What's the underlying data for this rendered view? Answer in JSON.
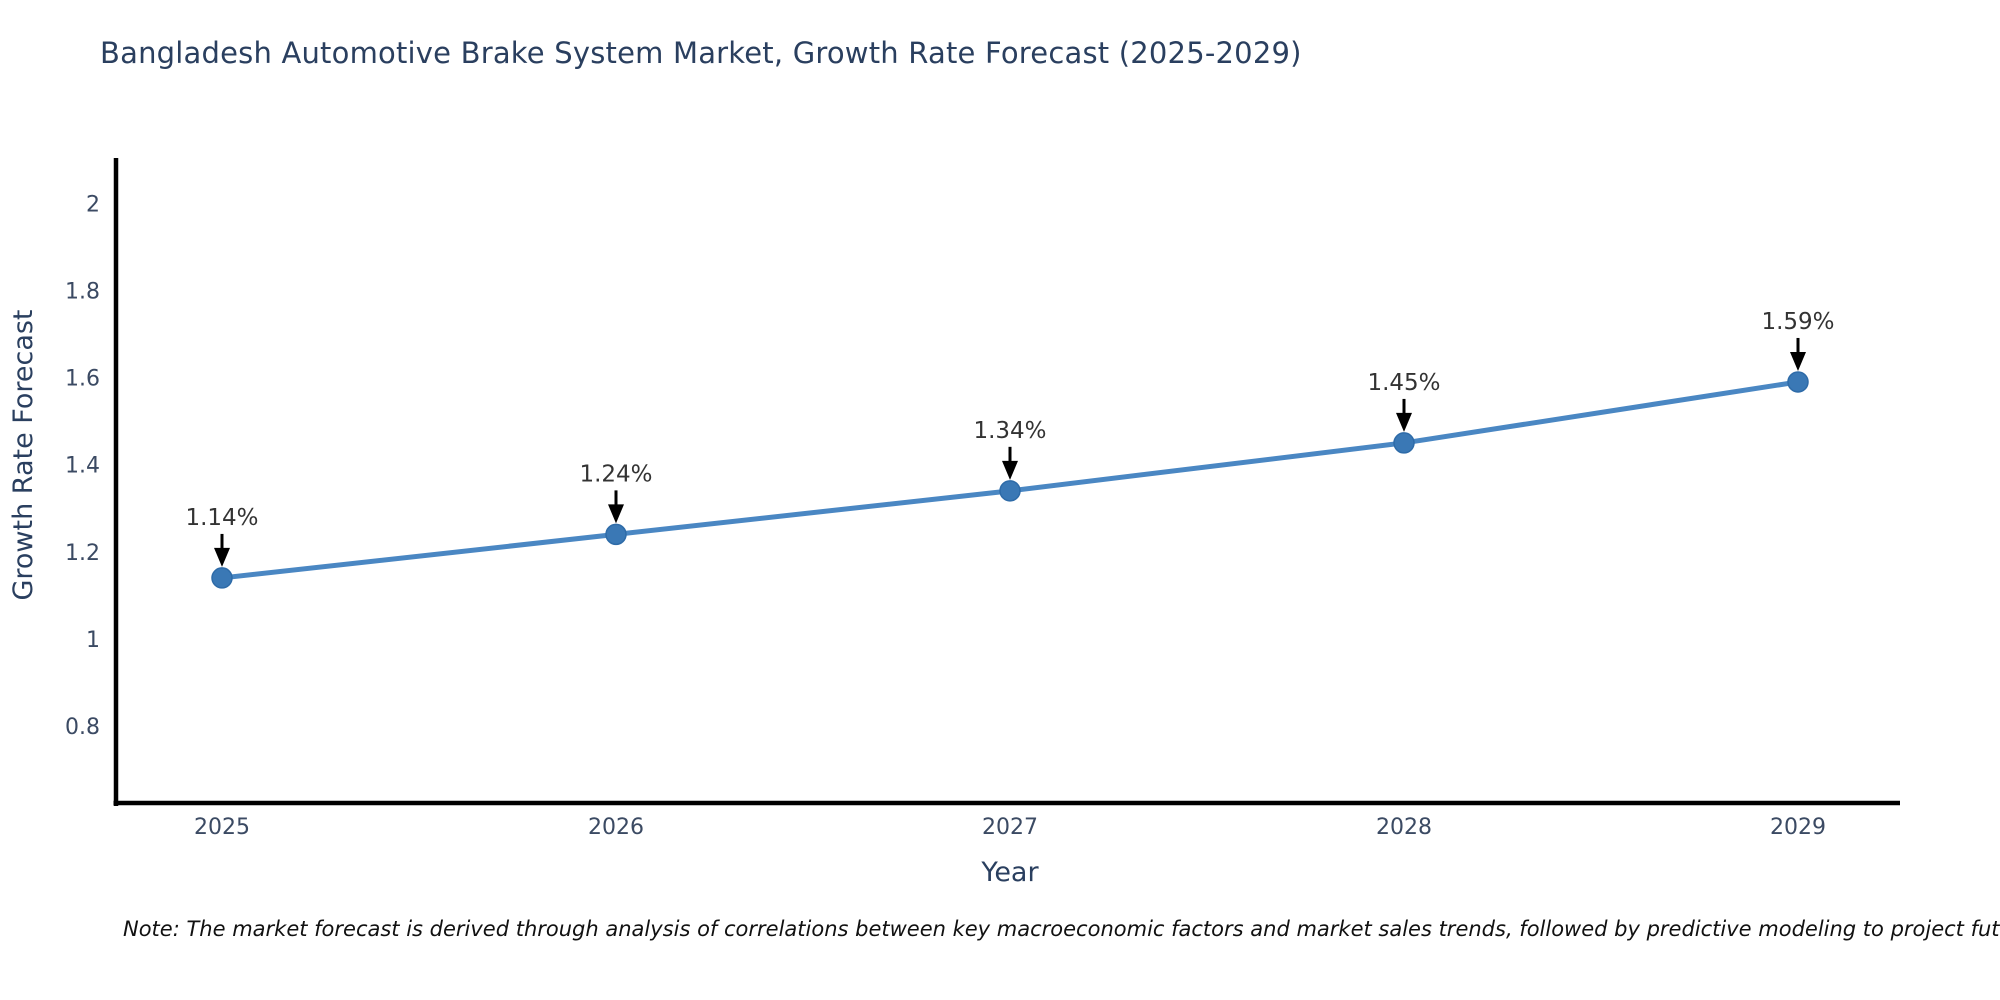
{
  "chart_data": {
    "type": "line",
    "title": "Bangladesh Automotive Brake System Market, Growth Rate Forecast (2025-2029)",
    "xlabel": "Year",
    "ylabel": "Growth Rate Forecast",
    "x": [
      2025,
      2026,
      2027,
      2028,
      2029
    ],
    "series": [
      {
        "name": "Growth Rate Forecast",
        "values": [
          1.14,
          1.24,
          1.34,
          1.45,
          1.59
        ],
        "point_labels": [
          "1.14%",
          "1.24%",
          "1.34%",
          "1.45%",
          "1.59%"
        ]
      }
    ],
    "xtick_labels": [
      "2025",
      "2026",
      "2027",
      "2028",
      "2029"
    ],
    "ytick_values": [
      0.8,
      1,
      1.2,
      1.4,
      1.6,
      1.8,
      2
    ],
    "ytick_labels": [
      "0.8",
      "1",
      "1.2",
      "1.4",
      "1.6",
      "1.8",
      "2"
    ],
    "ylim": [
      0.62,
      2.1
    ],
    "grid": false,
    "legend_position": "none",
    "annotations": "black down-arrows from each percentage label to its data point",
    "colors": {
      "line": "#4a87c3",
      "marker_fill": "#3a78b5",
      "marker_edge": "#2e6ba8",
      "arrow": "#000000",
      "axis_line": "#000000",
      "title_text": "#2a3f5f",
      "tick_text": "#3b4a63",
      "annotation_text": "#333333"
    }
  },
  "note": "Note: The market forecast is derived through analysis of correlations between key macroeconomic factors and market sales trends, followed by predictive modeling to project future sales"
}
